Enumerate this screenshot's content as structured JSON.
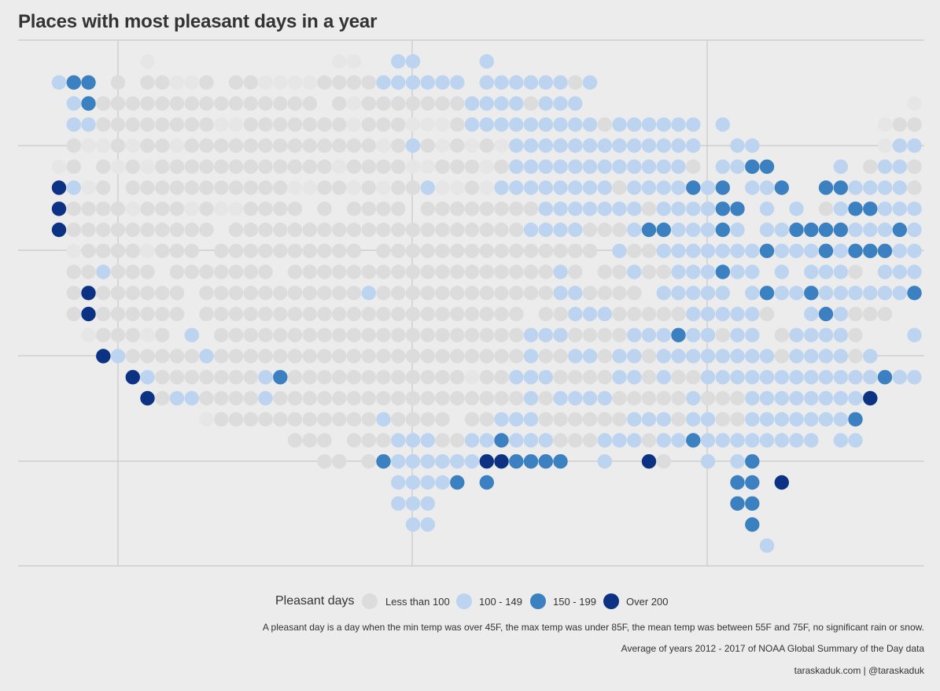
{
  "title": "Places with most pleasant days in a year",
  "legend": {
    "title": "Pleasant days",
    "items": [
      {
        "label": "Less than 100",
        "color": "#dcdcdc"
      },
      {
        "label": "100 - 149",
        "color": "#bcd4ef"
      },
      {
        "label": "150 - 199",
        "color": "#3b80c0"
      },
      {
        "label": "Over 200",
        "color": "#0c3283"
      }
    ]
  },
  "captions": {
    "definition": "A pleasant day is a day when the min temp was over 45F, the max temp was under 85F, the mean temp was between 55F and 75F, no significant rain or snow.",
    "source": "Average of years 2012 - 2017 of NOAA Global Summary of the Day data",
    "credit": "taraskaduk.com | @taraskaduk"
  },
  "chart_data": {
    "type": "scatter",
    "description_rows": "Hex-grid of US locations; each string is one grid row (north to south), characters are columns west to east. ' '=no data, 'a'=faint/very low, '0'=Less than 100, '1'=100-149, '2'=150-199, '3'=Over 200.",
    "category_codes": {
      "0": "Less than 100",
      "1": "100 - 149",
      "2": "150 - 199",
      "3": "Over 200",
      "a": "Less than 100"
    },
    "col_offset": 1,
    "rows": [
      "       a            aa  11    1                               ",
      " 122 0 00aa0 00aaaa0000111111 11111101                        ",
      "  12000000000000000 0a000000011110111                      a1 ",
      "  1100000000aa0000000a000aaa01111111110111111 1          a00  ",
      "  0aa0a00a0000000000000a010a0a0a1111111111111  11        a1101a",
      " a0 0a0a000000000000a0000aa000a01111111111110 1122    1 0110  ",
      " 31a0 00000000000aa00a0a001aa0a1111111101111212 112  22111101 2",
      " 30000a000a0aa0000 0 0000 0000000011111110111122 1 1 012211112",
      " 30000000000 00000000000000000000111100012211121 11222211121 2",
      "  a0000a000 0000000000 000000000000000 100111111121112122211 ",
      "  001000 0000000 00000000000000000010 00100111211 1 1110 1112",
      "  03000000 000000000001000000000000110000 11111 1211211111120",
      "  03000000 0000000000000000000000 0011100000111110  121000  10",
      "   a000a0 1 0000000000000000000001110000111211011 011110   1 ",
      "    31000001000000000000000000000100110110111111110111101  ",
      "      31000000012000000000000a001110000110100111111111111211231",
      "       30110000100000000000000000101111000001000111111113",
      "           a0000000000010000 001110000001110110011111112   ",
      "                 000 00011100112111000111011211111111 11 ",
      "                   00 02111111332222  1  30  1 12   ",
      "                        11112 2                22 3   ",
      "                        111                    22     ",
      "                         11                     2     ",
      "                                                 1     "
    ]
  }
}
